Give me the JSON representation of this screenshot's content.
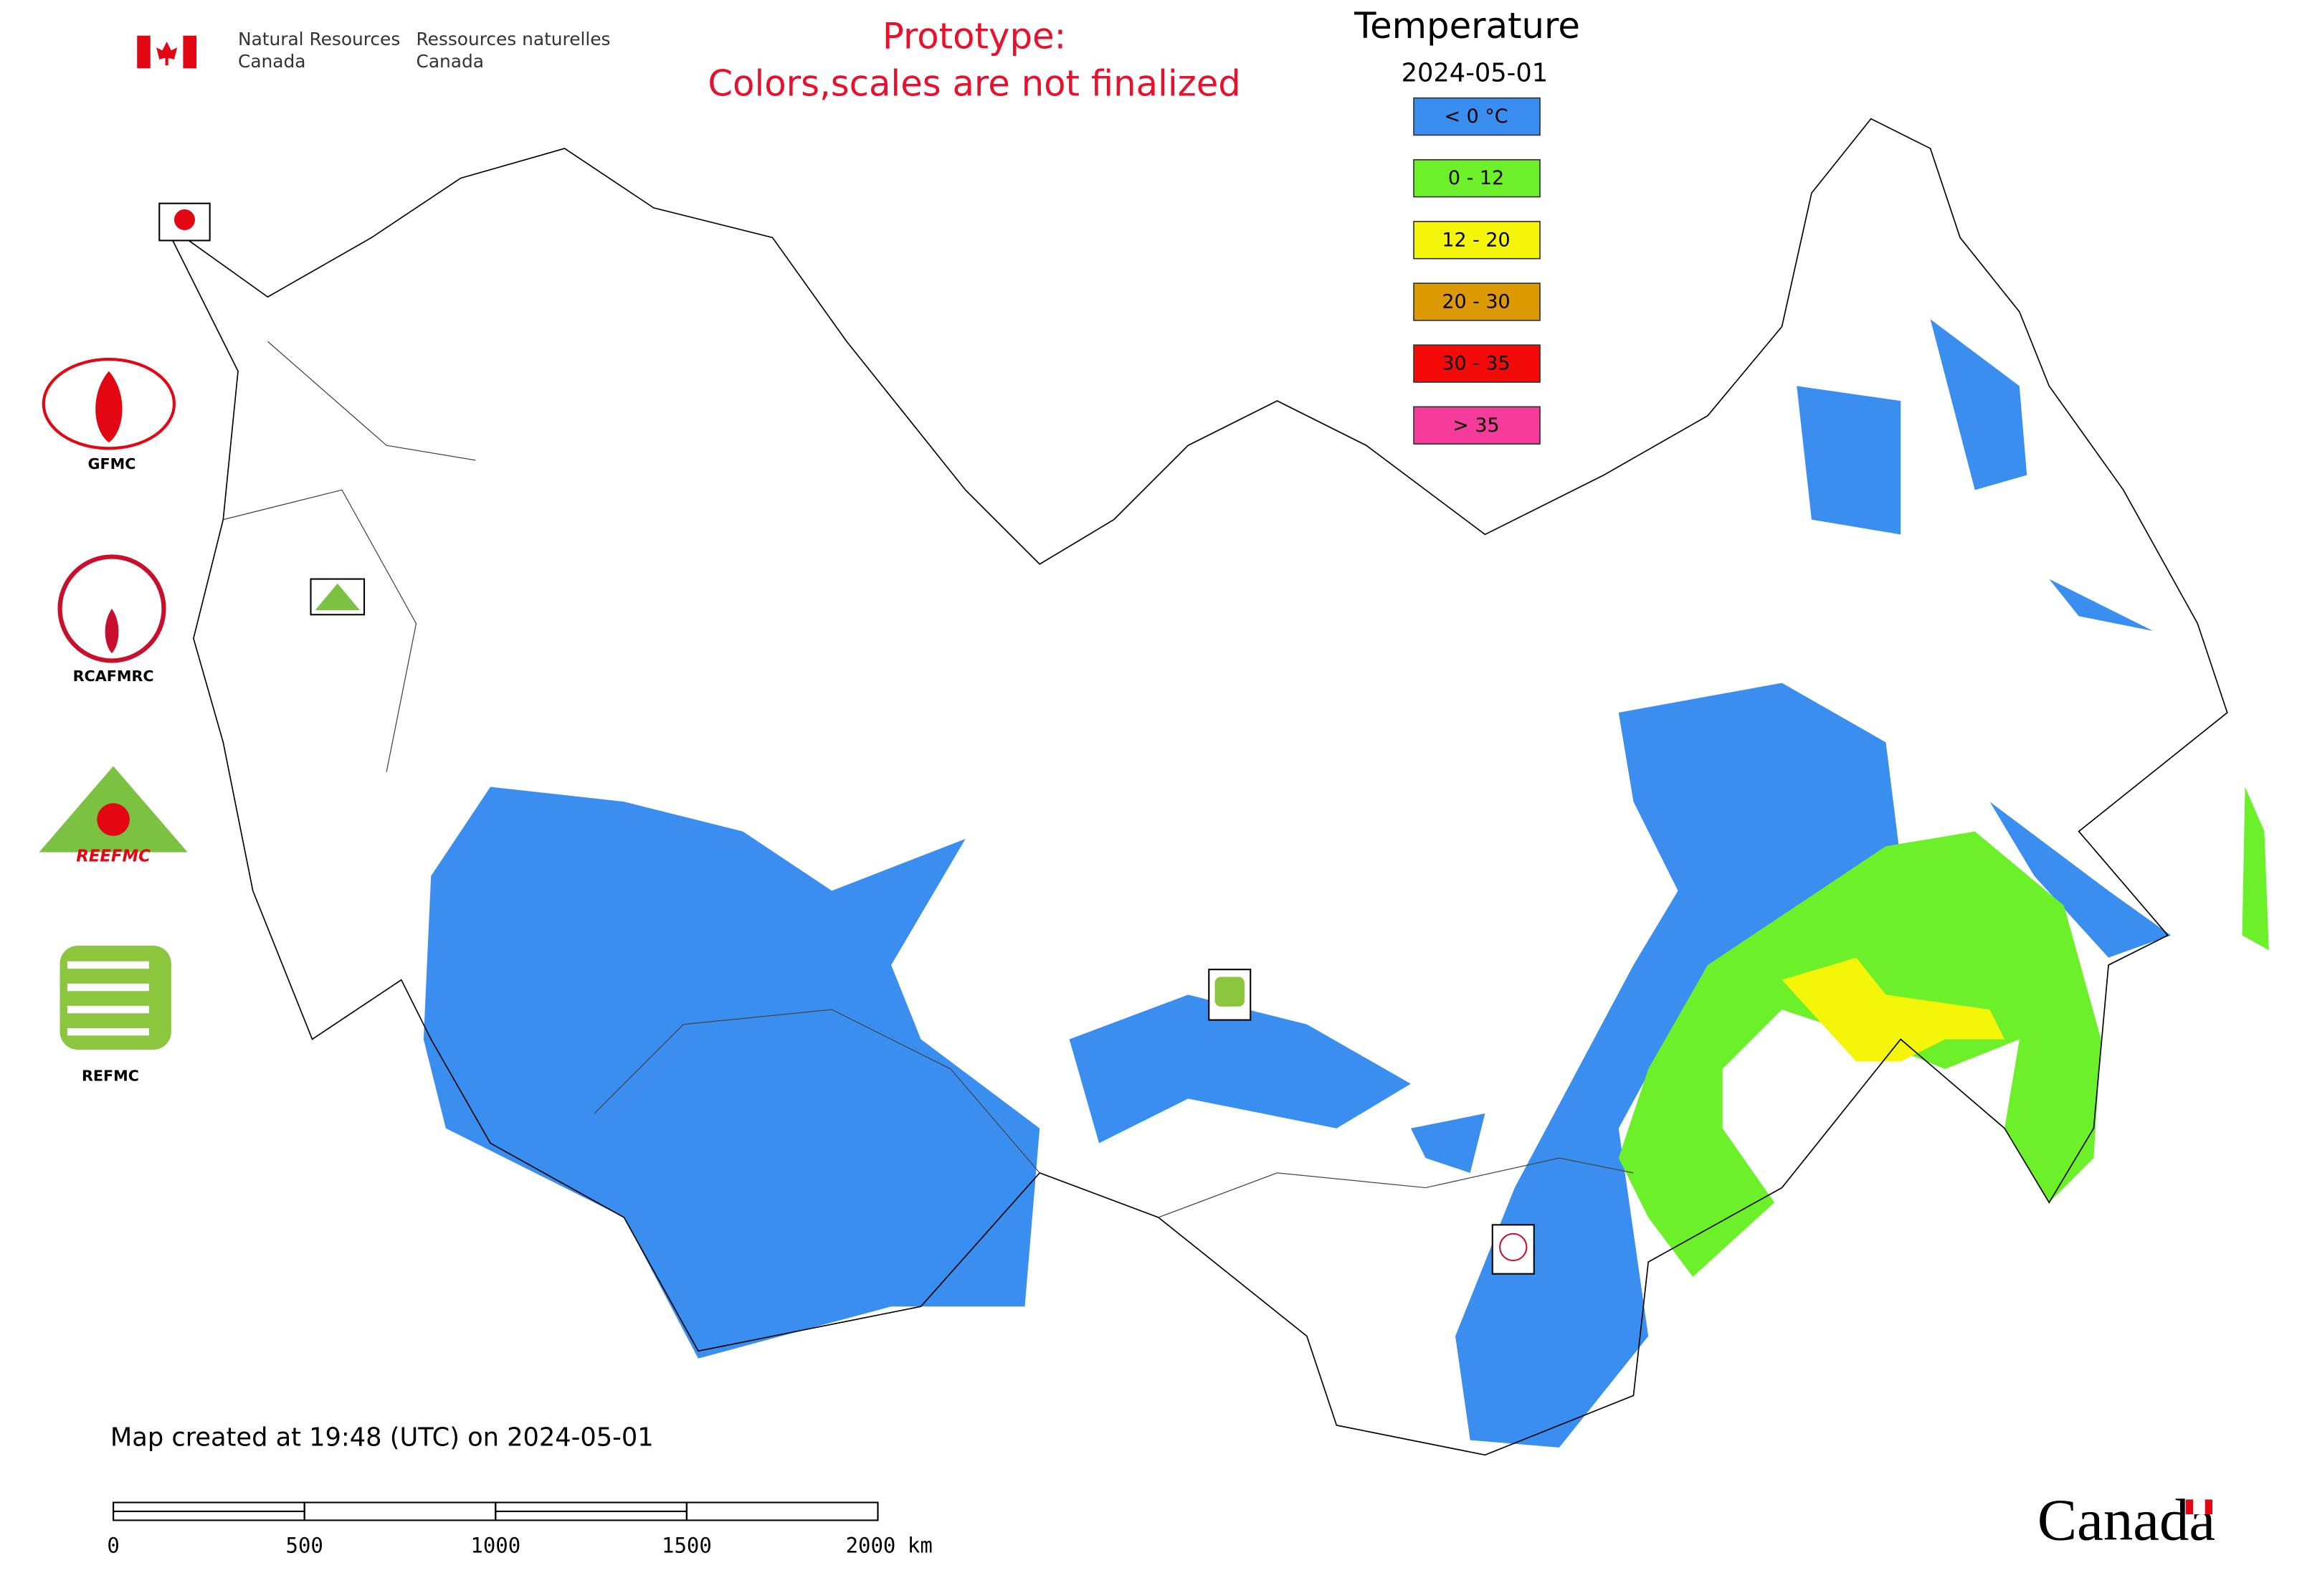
{
  "header": {
    "agency_en": [
      "Natural Resources",
      "Canada"
    ],
    "agency_fr": [
      "Ressources naturelles",
      "Canada"
    ],
    "notice": [
      "Prototype:",
      "Colors,scales are not finalized"
    ]
  },
  "legend": {
    "title": "Temperature",
    "date": "2024-05-01",
    "items": [
      {
        "label": "< 0 °C",
        "color": "#3a8ef0"
      },
      {
        "label": "0 - 12",
        "color": "#6cf02a"
      },
      {
        "label": "12 - 20",
        "color": "#f5f50a"
      },
      {
        "label": "20 - 30",
        "color": "#dd9a00"
      },
      {
        "label": "30 - 35",
        "color": "#f50a0a"
      },
      {
        "label": "> 35",
        "color": "#f53c9a"
      }
    ]
  },
  "logos": [
    "GFMC",
    "RCAFMRC",
    "REEFMC",
    "REFMC"
  ],
  "footer": {
    "created": "Map created at 19:48 (UTC) on 2024-05-01",
    "wordmark": "Canada"
  },
  "scale_bar": {
    "ticks": [
      0,
      500,
      1000,
      1500,
      2000
    ],
    "unit": "km"
  }
}
